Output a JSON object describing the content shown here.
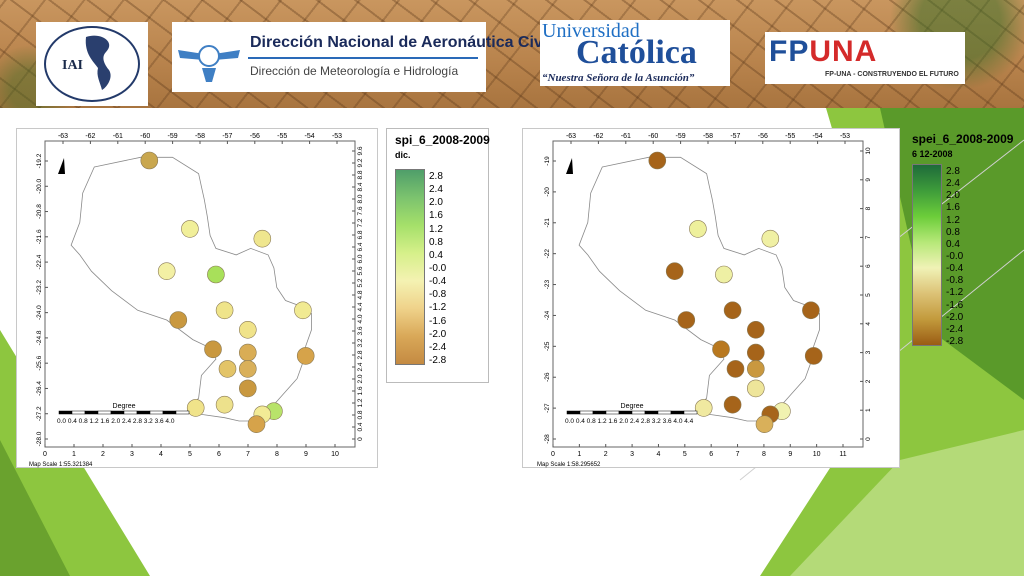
{
  "header": {
    "iai_logo": {
      "text": "IAI",
      "ring_text": "INTER-AMERICAN INSTITUTE FOR GLOBAL CHANGE RESEARCH"
    },
    "dinac_logo": {
      "title": "Dirección Nacional de Aeronáutica Civil",
      "subtitle": "Dirección de Meteorología e Hidrología"
    },
    "uc_logo": {
      "line1": "Universidad",
      "line2": "Católica",
      "tagline": "“Nuestra Señora de la Asunción”"
    },
    "fpuna_logo": {
      "mark": "FP",
      "mark2": "UNA",
      "tagline": "FP-UNA - CONSTRUYENDO EL FUTURO"
    }
  },
  "colors": {
    "accent_green": "#8dc63f",
    "dark_green": "#4d8a2a",
    "banner_brown": "#b9844d"
  },
  "maps": [
    {
      "id": "spi",
      "top_ticks": [
        "-63",
        "-62",
        "-61",
        "-60",
        "-59",
        "-58",
        "-57",
        "-56",
        "-55",
        "-54",
        "-53"
      ],
      "left_ticks": [
        "-19.2",
        "-20.0",
        "-20.8",
        "-21.6",
        "-22.4",
        "-23.2",
        "-24.0",
        "-24.8",
        "-25.6",
        "-26.4",
        "-27.2",
        "-28.0"
      ],
      "right_ticks": [
        "0",
        "0.4",
        "0.8",
        "1.2",
        "1.6",
        "2.0",
        "2.4",
        "2.8",
        "3.2",
        "3.6",
        "4.0",
        "4.4",
        "4.8",
        "5.2",
        "5.6",
        "6.0",
        "6.4",
        "6.8",
        "7.2",
        "7.6",
        "8.0",
        "8.4",
        "8.8",
        "9.2",
        "9.6"
      ],
      "bottom_ticks": [
        "0",
        "1",
        "2",
        "3",
        "4",
        "5",
        "6",
        "7",
        "8",
        "9",
        "10"
      ],
      "scale_label": "Degree",
      "scale_ticks": "0.0 0.4 0.8 1.2 1.6 2.0 2.4 2.8 3.2 3.6 4.0",
      "map_scale": "Map Scale 1:55.321384",
      "stations": [
        {
          "lon": -59.9,
          "lat": -19.4,
          "color": "#c9a74f"
        },
        {
          "lon": -58.5,
          "lat": -21.5,
          "color": "#f1ef9a"
        },
        {
          "lon": -56.0,
          "lat": -21.8,
          "color": "#efe68e"
        },
        {
          "lon": -59.3,
          "lat": -22.8,
          "color": "#f3f0a4"
        },
        {
          "lon": -57.6,
          "lat": -22.9,
          "color": "#a8e05a"
        },
        {
          "lon": -54.6,
          "lat": -24.0,
          "color": "#f1ea92"
        },
        {
          "lon": -57.3,
          "lat": -24.0,
          "color": "#efe48a"
        },
        {
          "lon": -58.9,
          "lat": -24.3,
          "color": "#c9983f"
        },
        {
          "lon": -56.5,
          "lat": -24.6,
          "color": "#f0e38a"
        },
        {
          "lon": -57.7,
          "lat": -25.2,
          "color": "#c9983f"
        },
        {
          "lon": -56.5,
          "lat": -25.3,
          "color": "#d9ad55"
        },
        {
          "lon": -54.5,
          "lat": -25.4,
          "color": "#d6a34a"
        },
        {
          "lon": -57.2,
          "lat": -25.8,
          "color": "#e3c468"
        },
        {
          "lon": -56.5,
          "lat": -25.8,
          "color": "#d9b05a"
        },
        {
          "lon": -56.5,
          "lat": -26.4,
          "color": "#c9983f"
        },
        {
          "lon": -58.3,
          "lat": -27.0,
          "color": "#f0e38a"
        },
        {
          "lon": -57.3,
          "lat": -26.9,
          "color": "#ede18c"
        },
        {
          "lon": -55.6,
          "lat": -27.1,
          "color": "#b8e36a"
        },
        {
          "lon": -56.0,
          "lat": -27.2,
          "color": "#f2eb96"
        },
        {
          "lon": -56.2,
          "lat": -27.5,
          "color": "#d6a34a"
        }
      ]
    },
    {
      "id": "spei",
      "top_ticks": [
        "-63",
        "-62",
        "-61",
        "-60",
        "-59",
        "-58",
        "-57",
        "-56",
        "-55",
        "-54",
        "-53"
      ],
      "left_ticks": [
        "-19",
        "-20",
        "-21",
        "-22",
        "-23",
        "-24",
        "-25",
        "-26",
        "-27",
        "-28"
      ],
      "right_ticks": [
        "0",
        "1",
        "2",
        "3",
        "4",
        "5",
        "6",
        "7",
        "8",
        "9",
        "10"
      ],
      "bottom_ticks": [
        "0",
        "1",
        "2",
        "3",
        "4",
        "5",
        "6",
        "7",
        "8",
        "9",
        "10",
        "11"
      ],
      "scale_label": "Degree",
      "scale_ticks": "0.0 0.4 0.8 1.2 1.6 2.0 2.4 2.8 3.2 3.6 4.0 4.4",
      "map_scale": "Map Scale 1:58.295652",
      "stations": [
        {
          "lon": -59.9,
          "lat": -19.4,
          "color": "#a6641a"
        },
        {
          "lon": -58.5,
          "lat": -21.5,
          "color": "#eef09c"
        },
        {
          "lon": -56.0,
          "lat": -21.8,
          "color": "#f0f0a4"
        },
        {
          "lon": -59.3,
          "lat": -22.8,
          "color": "#a6641a"
        },
        {
          "lon": -57.6,
          "lat": -22.9,
          "color": "#eef0a4"
        },
        {
          "lon": -54.6,
          "lat": -24.0,
          "color": "#a6641a"
        },
        {
          "lon": -57.3,
          "lat": -24.0,
          "color": "#a6641a"
        },
        {
          "lon": -58.9,
          "lat": -24.3,
          "color": "#a6641a"
        },
        {
          "lon": -56.5,
          "lat": -24.6,
          "color": "#a6641a"
        },
        {
          "lon": -57.7,
          "lat": -25.2,
          "color": "#b8781f"
        },
        {
          "lon": -56.5,
          "lat": -25.3,
          "color": "#a6641a"
        },
        {
          "lon": -54.5,
          "lat": -25.4,
          "color": "#a6641a"
        },
        {
          "lon": -57.2,
          "lat": -25.8,
          "color": "#a6641a"
        },
        {
          "lon": -56.5,
          "lat": -25.8,
          "color": "#c9983f"
        },
        {
          "lon": -56.5,
          "lat": -26.4,
          "color": "#eee59a"
        },
        {
          "lon": -58.3,
          "lat": -27.0,
          "color": "#f0e9a0"
        },
        {
          "lon": -57.3,
          "lat": -26.9,
          "color": "#a6641a"
        },
        {
          "lon": -55.6,
          "lat": -27.1,
          "color": "#f1f2b0"
        },
        {
          "lon": -56.0,
          "lat": -27.2,
          "color": "#a6641a"
        },
        {
          "lon": -56.2,
          "lat": -27.5,
          "color": "#d9b05a"
        }
      ]
    }
  ],
  "legends": [
    {
      "title": "spi_6_2008-2009",
      "subtitle": "dic.",
      "values": [
        "2.8",
        "2.4",
        "2.0",
        "1.6",
        "1.2",
        "0.8",
        "0.4",
        "-0.0",
        "-0.4",
        "-0.8",
        "-1.2",
        "-1.6",
        "-2.0",
        "-2.4",
        "-2.8"
      ],
      "ramp_colors": [
        "#4f9e6a",
        "#7cc36e",
        "#a5e06a",
        "#d6f08a",
        "#f4f2b2",
        "#efd28a",
        "#d9a858",
        "#c48a42"
      ]
    },
    {
      "title": "spei_6_2008-2009",
      "subtitle": "6 12-2008",
      "values": [
        "2.8",
        "2.4",
        "2.0",
        "1.6",
        "1.2",
        "0.8",
        "0.4",
        "-0.0",
        "-0.4",
        "-0.8",
        "-1.2",
        "-1.6",
        "-2.0",
        "-2.4",
        "-2.8"
      ],
      "ramp_colors": [
        "#1e6b3a",
        "#3e9c3a",
        "#6ccd3a",
        "#b6e878",
        "#f0f2b6",
        "#dcc276",
        "#c29a3c",
        "#9a5c14"
      ]
    }
  ]
}
